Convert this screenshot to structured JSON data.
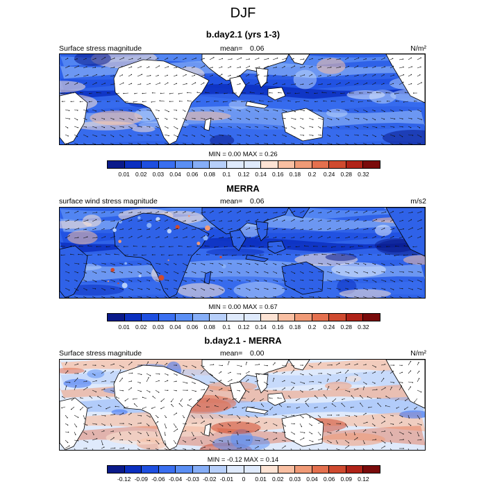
{
  "figure_title": "DJF",
  "palette_seq": [
    "#0a1a8a",
    "#0b2fbf",
    "#1e4fe0",
    "#3a6ff0",
    "#5b8ff4",
    "#86aef7",
    "#b7cffa",
    "#dfeafc",
    "#fde3d4",
    "#f9bfa2",
    "#f09a76",
    "#e4704e",
    "#cf4a2f",
    "#b02318",
    "#7a0b0b"
  ],
  "palette_div": [
    "#0a1a8a",
    "#0b2fbf",
    "#1e4fe0",
    "#3a6ff0",
    "#5b8ff4",
    "#86aef7",
    "#b7cffa",
    "#dfeafc",
    "#fde3d4",
    "#f9bfa2",
    "#f09a76",
    "#e4704e",
    "#cf4a2f",
    "#b02318",
    "#7a0b0b"
  ],
  "panels": [
    {
      "title": "b.day2.1 (yrs 1-3)",
      "left_label": "Surface stress magnitude",
      "mean_label": "mean=",
      "mean_value": "0.06",
      "units": "N/m²",
      "min_max": "MIN =  0.00 MAX =  0.26",
      "cbar_ticks": [
        "0.01",
        "0.02",
        "0.03",
        "0.04",
        "0.06",
        "0.08",
        "0.1",
        "0.12",
        "0.14",
        "0.16",
        "0.18",
        "0.2",
        "0.24",
        "0.28",
        "0.32"
      ]
    },
    {
      "title": "MERRA",
      "left_label": "surface wind stress magnitude",
      "mean_label": "mean=",
      "mean_value": "0.06",
      "units": "m/s2",
      "min_max": "MIN =  0.00 MAX =  0.67",
      "cbar_ticks": [
        "0.01",
        "0.02",
        "0.03",
        "0.04",
        "0.06",
        "0.08",
        "0.1",
        "0.12",
        "0.14",
        "0.16",
        "0.18",
        "0.2",
        "0.24",
        "0.28",
        "0.32"
      ]
    },
    {
      "title": "b.day2.1 - MERRA",
      "left_label": "Surface stress magnitude",
      "mean_label": "mean=",
      "mean_value": "0.00",
      "units": "N/m²",
      "min_max": "MIN = -0.12 MAX =  0.14",
      "cbar_ticks": [
        "-0.12",
        "-0.09",
        "-0.06",
        "-0.04",
        "-0.03",
        "-0.02",
        "-0.01",
        "0",
        "0.01",
        "0.02",
        "0.03",
        "0.04",
        "0.06",
        "0.09",
        "0.12"
      ]
    }
  ],
  "chart_data": {
    "type": "heatmap",
    "title": "DJF",
    "description_units": "contoured map fields of surface stress magnitude with wind-stress vectors",
    "panels": [
      {
        "name": "b.day2.1 (yrs 1-3)",
        "mean": 0.06,
        "min": 0.0,
        "max": 0.26,
        "units": "N/m2",
        "levels": [
          0.01,
          0.02,
          0.03,
          0.04,
          0.06,
          0.08,
          0.1,
          0.12,
          0.14,
          0.16,
          0.18,
          0.2,
          0.24,
          0.28,
          0.32
        ]
      },
      {
        "name": "MERRA",
        "mean": 0.06,
        "min": 0.0,
        "max": 0.67,
        "units": "m/s2",
        "levels": [
          0.01,
          0.02,
          0.03,
          0.04,
          0.06,
          0.08,
          0.1,
          0.12,
          0.14,
          0.16,
          0.18,
          0.2,
          0.24,
          0.28,
          0.32
        ]
      },
      {
        "name": "b.day2.1 - MERRA",
        "mean": 0.0,
        "min": -0.12,
        "max": 0.14,
        "units": "N/m2",
        "levels": [
          -0.12,
          -0.09,
          -0.06,
          -0.04,
          -0.03,
          -0.02,
          -0.01,
          0,
          0.01,
          0.02,
          0.03,
          0.04,
          0.06,
          0.09,
          0.12
        ]
      }
    ]
  }
}
